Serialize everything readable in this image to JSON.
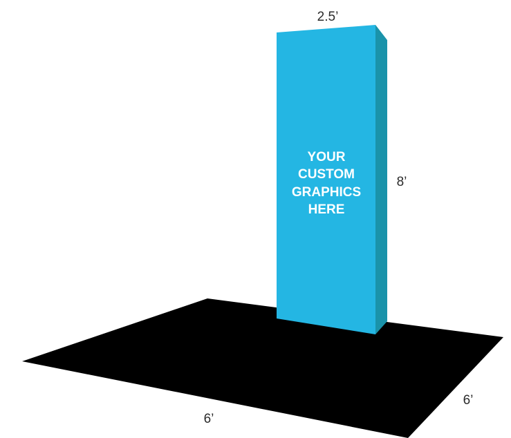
{
  "dimensions": {
    "tower_width": "2.5’",
    "tower_height": "8’",
    "floor_width": "6’",
    "floor_depth": "6’"
  },
  "graphic_panel": {
    "lines": [
      "YOUR",
      "CUSTOM",
      "GRAPHICS",
      "HERE"
    ]
  },
  "colors": {
    "tower_front": "#24B6E3",
    "tower_side": "#1A93AA",
    "floor": "#000000",
    "label_text": "#2A2A2A",
    "graphic_text": "#FFFFFF"
  }
}
